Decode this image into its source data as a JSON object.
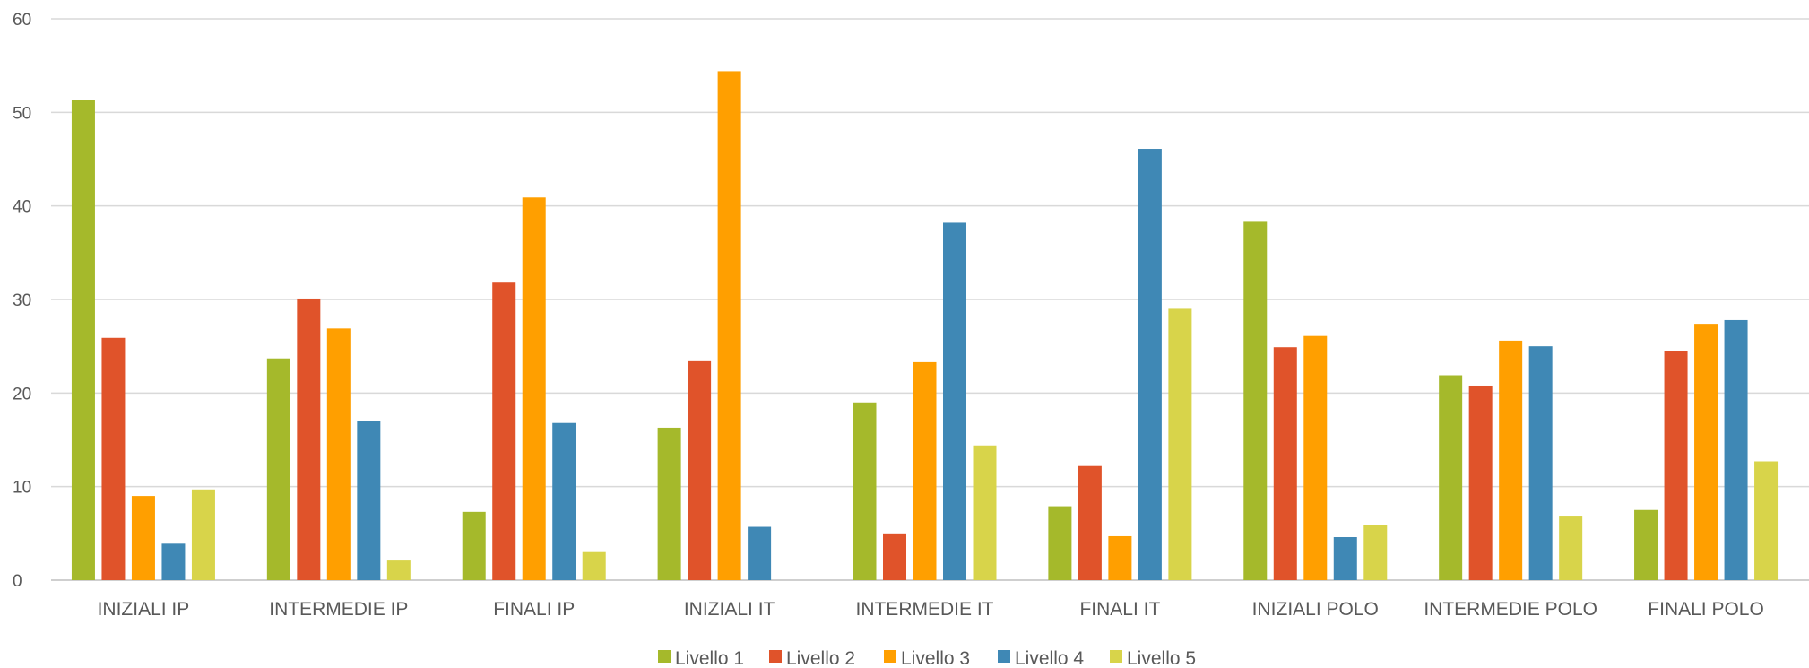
{
  "chart_data": {
    "type": "bar",
    "categories": [
      "INIZIALI IP",
      "INTERMEDIE IP",
      "FINALI IP",
      "INIZIALI IT",
      "INTERMEDIE IT",
      "FINALI IT",
      "INIZIALI POLO",
      "INTERMEDIE POLO",
      "FINALI POLO"
    ],
    "series": [
      {
        "name": "Livello 1",
        "color": "#a5b92b",
        "values": [
          51.3,
          23.7,
          7.3,
          16.3,
          19.0,
          7.9,
          38.3,
          21.9,
          7.5
        ]
      },
      {
        "name": "Livello 2",
        "color": "#e0532a",
        "values": [
          25.9,
          30.1,
          31.8,
          23.4,
          5.0,
          12.2,
          24.9,
          20.8,
          24.5
        ]
      },
      {
        "name": "Livello 3",
        "color": "#ff9f00",
        "values": [
          9.0,
          26.9,
          40.9,
          54.4,
          23.3,
          4.7,
          26.1,
          25.6,
          27.4
        ]
      },
      {
        "name": "Livello 4",
        "color": "#3f88b5",
        "values": [
          3.9,
          17.0,
          16.8,
          5.7,
          38.2,
          46.1,
          4.6,
          25.0,
          27.8
        ]
      },
      {
        "name": "Livello 5",
        "color": "#d8d44a",
        "values": [
          9.7,
          2.1,
          3.0,
          0,
          14.4,
          29.0,
          5.9,
          6.8,
          12.7
        ]
      }
    ],
    "ylim": [
      0,
      60
    ],
    "yticks": [
      0,
      10,
      20,
      30,
      40,
      50,
      60
    ],
    "grid": true,
    "legend": "bottom-center"
  }
}
